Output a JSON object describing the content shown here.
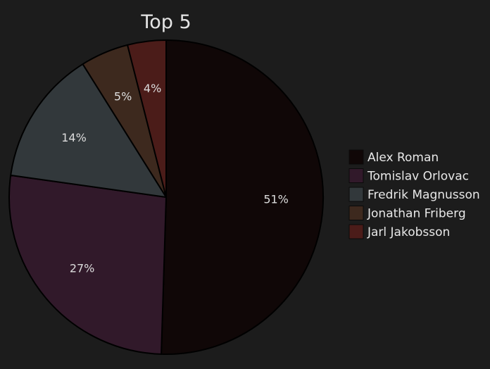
{
  "chart_data": {
    "type": "pie",
    "title": "Top 5",
    "legend_position": "right",
    "slices": [
      {
        "name": "Alex Roman",
        "value": 51,
        "label": "51%",
        "color": "#100707"
      },
      {
        "name": "Tomislav Orlovac",
        "value": 27,
        "label": "27%",
        "color": "#31192a"
      },
      {
        "name": "Fredrik Magnusson",
        "value": 14,
        "label": "14%",
        "color": "#32383b"
      },
      {
        "name": "Jonathan Friberg",
        "value": 5,
        "label": "5%",
        "color": "#3d291e"
      },
      {
        "name": "Jarl Jakobsson",
        "value": 4,
        "label": "4%",
        "color": "#4b1c19"
      }
    ],
    "outline_color": "#000000"
  }
}
